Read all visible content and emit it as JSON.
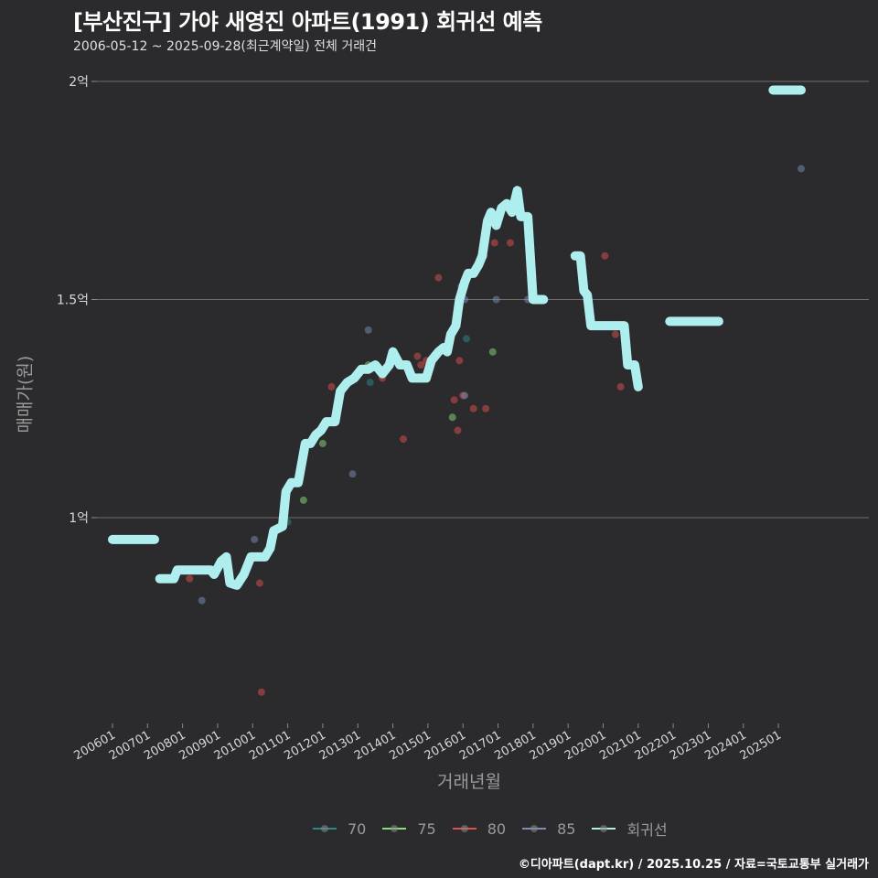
{
  "header": {
    "title": "[부산진구] 가야 새영진 아파트(1991) 회귀선 예측",
    "subtitle": "2006-05-12 ~ 2025-09-28(최근계약일) 전체 거래건"
  },
  "axes": {
    "ylabel": "매매가(원)",
    "xlabel": "거래년월"
  },
  "legend": {
    "items": [
      {
        "label": "70",
        "color": "#2a8a8a"
      },
      {
        "label": "75",
        "color": "#88e07a"
      },
      {
        "label": "80",
        "color": "#e05050"
      },
      {
        "label": "85",
        "color": "#7a8fb8"
      },
      {
        "label": "회귀선",
        "color": "#aeeeee"
      }
    ]
  },
  "footer": {
    "credit": "©디아파트(dapt.kr) / 2025.10.25 / 자료=국토교통부 실거래가"
  },
  "chart_data": {
    "type": "line",
    "title": "[부산진구] 가야 새영진 아파트(1991) 회귀선 예측",
    "subtitle": "2006-05-12 ~ 2025-09-28(최근계약일) 전체 거래건",
    "xlabel": "거래년월",
    "ylabel": "매매가(원)",
    "x_ticks": [
      "200601",
      "200701",
      "200801",
      "200901",
      "201001",
      "201101",
      "201201",
      "201301",
      "201401",
      "201501",
      "201601",
      "201701",
      "201801",
      "201901",
      "202001",
      "202101",
      "202201",
      "202301",
      "202401",
      "202501"
    ],
    "y_ticks": [
      {
        "value": 1.0,
        "label": "1억"
      },
      {
        "value": 1.5,
        "label": "1.5억"
      },
      {
        "value": 2.0,
        "label": "2억"
      }
    ],
    "ylim": [
      0.5,
      2.05
    ],
    "grid": "horizontal",
    "legend_position": "bottom",
    "series": [
      {
        "name": "회귀선",
        "color": "#aeeeee",
        "segments": [
          [
            [
              2006.0,
              0.95
            ],
            [
              2007.2,
              0.95
            ]
          ],
          [
            [
              2007.35,
              0.86
            ],
            [
              2007.75,
              0.86
            ],
            [
              2007.85,
              0.88
            ],
            [
              2008.8,
              0.88
            ],
            [
              2008.9,
              0.87
            ],
            [
              2009.1,
              0.9
            ],
            [
              2009.25,
              0.91
            ],
            [
              2009.35,
              0.85
            ],
            [
              2009.55,
              0.845
            ],
            [
              2009.75,
              0.87
            ],
            [
              2009.95,
              0.91
            ],
            [
              2010.35,
              0.91
            ],
            [
              2010.5,
              0.93
            ],
            [
              2010.6,
              0.97
            ],
            [
              2010.85,
              0.98
            ],
            [
              2010.95,
              1.06
            ],
            [
              2011.1,
              1.08
            ],
            [
              2011.3,
              1.08
            ],
            [
              2011.5,
              1.17
            ],
            [
              2011.65,
              1.17
            ],
            [
              2011.8,
              1.19
            ],
            [
              2011.95,
              1.2
            ],
            [
              2012.1,
              1.22
            ],
            [
              2012.35,
              1.22
            ],
            [
              2012.5,
              1.29
            ],
            [
              2012.7,
              1.31
            ],
            [
              2012.9,
              1.32
            ],
            [
              2013.1,
              1.34
            ],
            [
              2013.3,
              1.34
            ],
            [
              2013.5,
              1.35
            ],
            [
              2013.7,
              1.33
            ],
            [
              2013.9,
              1.35
            ],
            [
              2014.0,
              1.38
            ],
            [
              2014.2,
              1.35
            ],
            [
              2014.4,
              1.35
            ],
            [
              2014.55,
              1.32
            ],
            [
              2014.75,
              1.32
            ],
            [
              2014.95,
              1.32
            ],
            [
              2015.1,
              1.36
            ],
            [
              2015.3,
              1.38
            ],
            [
              2015.45,
              1.39
            ],
            [
              2015.55,
              1.38
            ],
            [
              2015.65,
              1.42
            ],
            [
              2015.8,
              1.44
            ],
            [
              2015.9,
              1.5
            ],
            [
              2016.05,
              1.54
            ],
            [
              2016.15,
              1.56
            ],
            [
              2016.3,
              1.56
            ],
            [
              2016.45,
              1.58
            ],
            [
              2016.55,
              1.6
            ],
            [
              2016.7,
              1.68
            ],
            [
              2016.8,
              1.7
            ],
            [
              2016.95,
              1.67
            ],
            [
              2017.1,
              1.71
            ],
            [
              2017.25,
              1.72
            ],
            [
              2017.4,
              1.7
            ],
            [
              2017.55,
              1.75
            ],
            [
              2017.65,
              1.69
            ],
            [
              2017.85,
              1.69
            ],
            [
              2018.0,
              1.5
            ],
            [
              2018.3,
              1.5
            ]
          ],
          [
            [
              2019.2,
              1.6
            ],
            [
              2019.35,
              1.6
            ],
            [
              2019.45,
              1.52
            ],
            [
              2019.55,
              1.51
            ],
            [
              2019.65,
              1.44
            ],
            [
              2020.0,
              1.44
            ],
            [
              2020.6,
              1.44
            ],
            [
              2020.7,
              1.35
            ],
            [
              2020.9,
              1.35
            ],
            [
              2021.0,
              1.3
            ]
          ],
          [
            [
              2021.9,
              1.45
            ],
            [
              2023.3,
              1.45
            ]
          ],
          [
            [
              2024.85,
              1.98
            ],
            [
              2025.65,
              1.98
            ]
          ]
        ]
      }
    ],
    "scatter": [
      {
        "name": "70",
        "color": "#2a8a8a",
        "points": [
          [
            2011.0,
            0.99
          ],
          [
            2013.35,
            1.31
          ],
          [
            2016.1,
            1.41
          ]
        ]
      },
      {
        "name": "75",
        "color": "#88e07a",
        "points": [
          [
            2011.45,
            1.04
          ],
          [
            2012.0,
            1.17
          ],
          [
            2015.7,
            1.23
          ],
          [
            2016.85,
            1.38
          ],
          [
            2013.3,
            1.35
          ]
        ]
      },
      {
        "name": "80",
        "color": "#e05050",
        "points": [
          [
            2008.2,
            0.86
          ],
          [
            2010.2,
            0.85
          ],
          [
            2010.25,
            0.6
          ],
          [
            2012.25,
            1.3
          ],
          [
            2013.7,
            1.32
          ],
          [
            2014.3,
            1.18
          ],
          [
            2014.7,
            1.37
          ],
          [
            2014.8,
            1.35
          ],
          [
            2015.3,
            1.55
          ],
          [
            2015.75,
            1.27
          ],
          [
            2015.85,
            1.2
          ],
          [
            2016.0,
            1.28
          ],
          [
            2016.3,
            1.25
          ],
          [
            2016.6,
            1.6
          ],
          [
            2016.65,
            1.25
          ],
          [
            2016.9,
            1.63
          ],
          [
            2017.35,
            1.63
          ],
          [
            2020.05,
            1.6
          ],
          [
            2020.35,
            1.42
          ],
          [
            2020.5,
            1.3
          ],
          [
            2015.9,
            1.36
          ],
          [
            2014.95,
            1.36
          ]
        ]
      },
      {
        "name": "85",
        "color": "#7a8fb8",
        "points": [
          [
            2008.55,
            0.81
          ],
          [
            2010.05,
            0.95
          ],
          [
            2012.85,
            1.1
          ],
          [
            2013.3,
            1.43
          ],
          [
            2015.95,
            1.53
          ],
          [
            2016.05,
            1.5
          ],
          [
            2016.05,
            1.28
          ],
          [
            2016.95,
            1.5
          ],
          [
            2017.85,
            1.5
          ],
          [
            2025.65,
            1.8
          ]
        ]
      }
    ]
  }
}
